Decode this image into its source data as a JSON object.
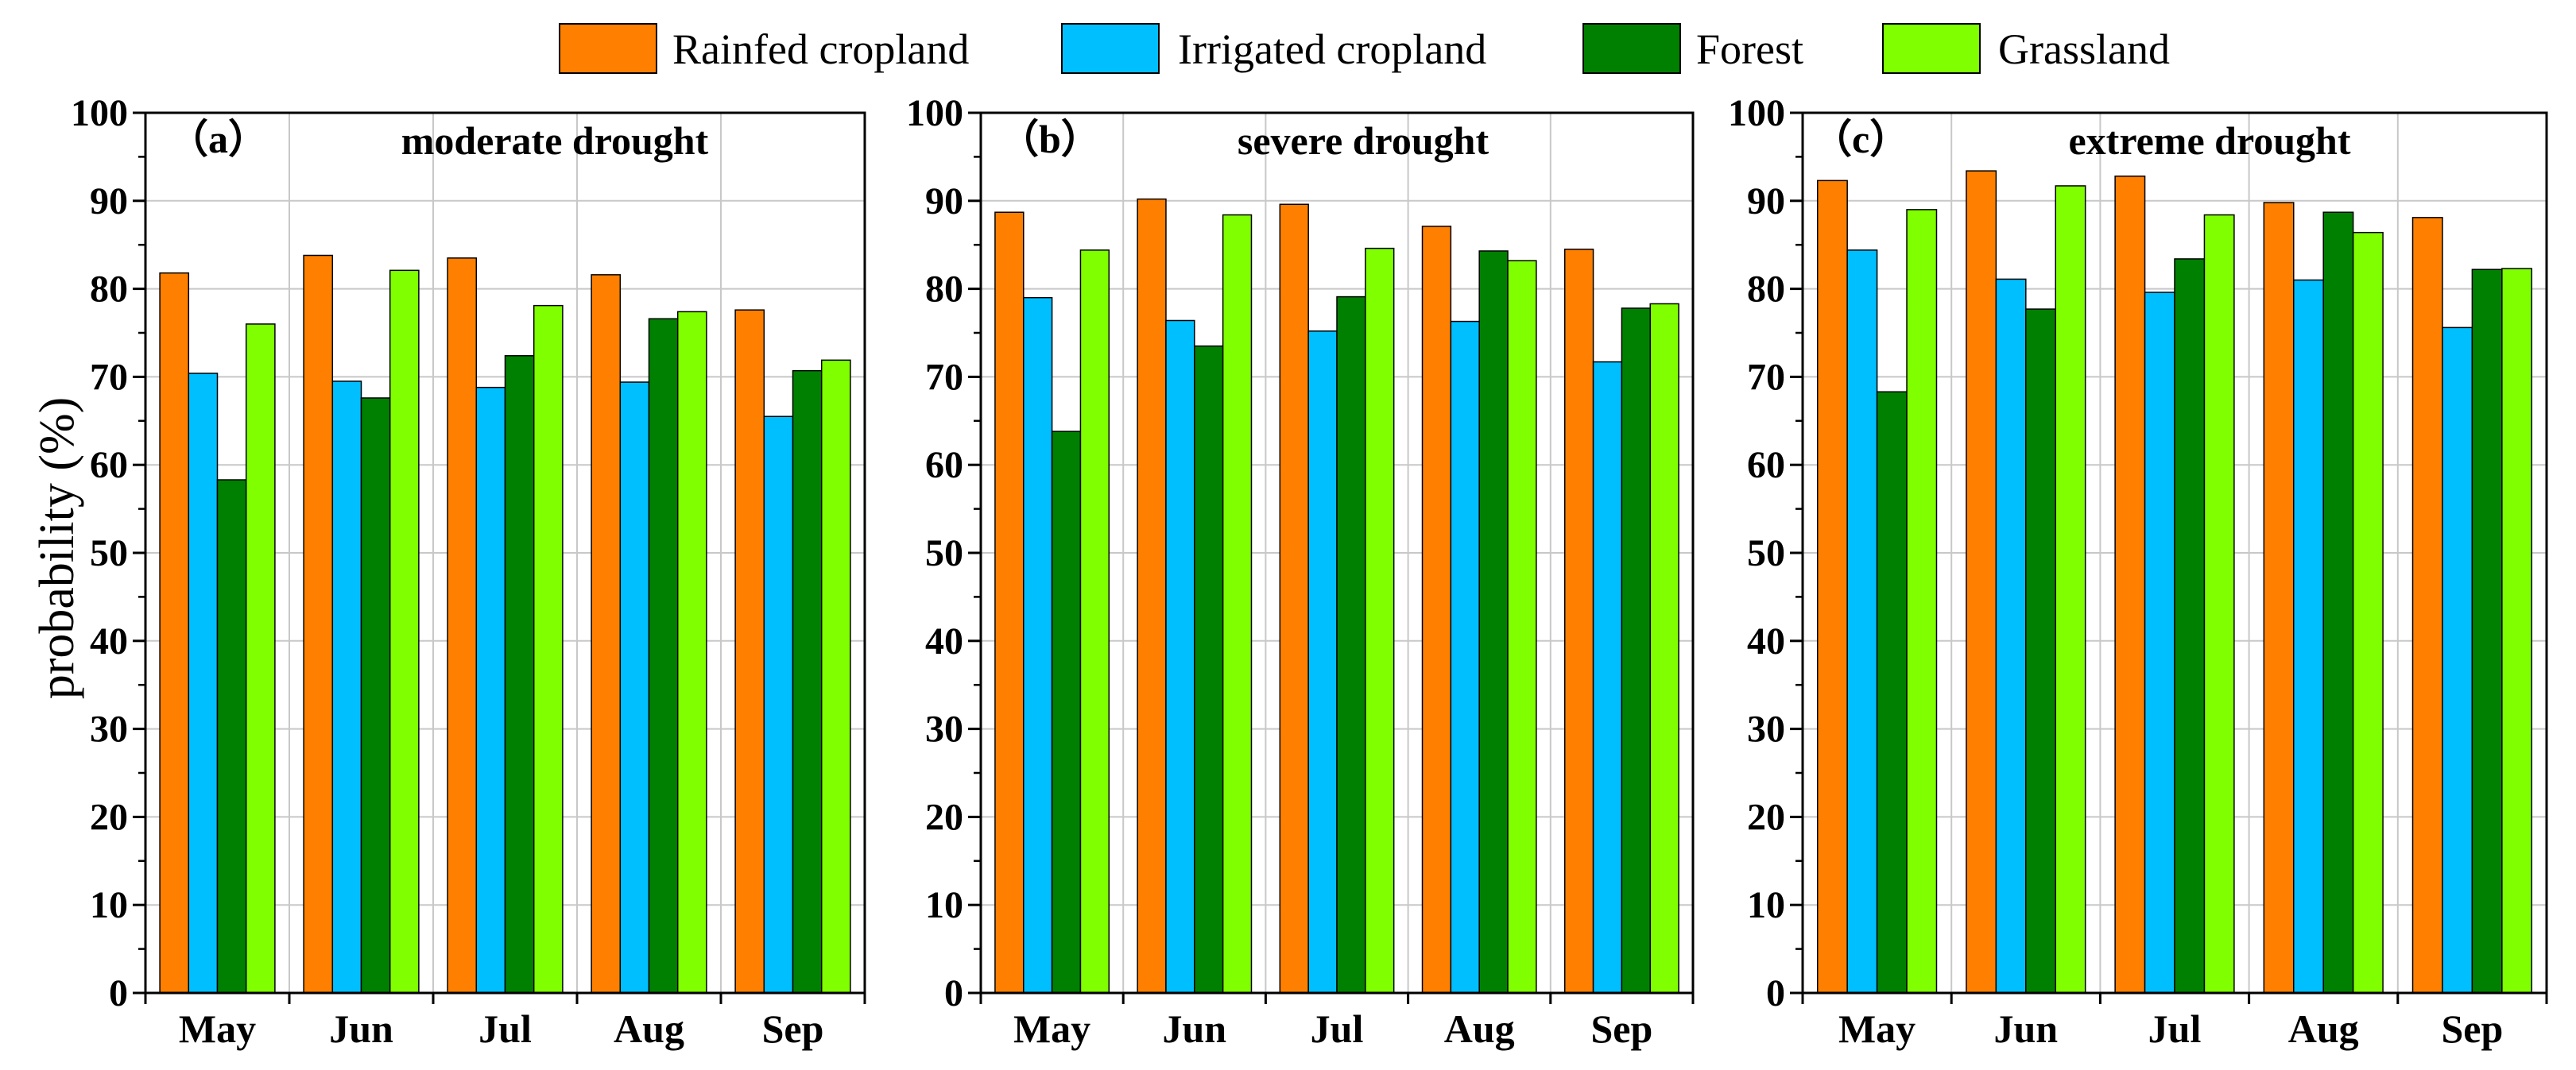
{
  "chart_data": {
    "type": "bar",
    "ylabel": "probability (%)",
    "ylim": [
      0,
      100
    ],
    "yticks": [
      0,
      10,
      20,
      30,
      40,
      50,
      60,
      70,
      80,
      90,
      100
    ],
    "grid": true,
    "legend_position": "top-center",
    "categories": [
      "May",
      "Jun",
      "Jul",
      "Aug",
      "Sep"
    ],
    "series_meta": [
      {
        "name": "Rainfed cropland",
        "color": "#FF7F00"
      },
      {
        "name": "Irrigated cropland",
        "color": "#00BFFF"
      },
      {
        "name": "Forest",
        "color": "#008000"
      },
      {
        "name": "Grassland",
        "color": "#7FFF00"
      }
    ],
    "panels": [
      {
        "letter": "（a）",
        "title": "moderate drought",
        "series": [
          {
            "name": "Rainfed cropland",
            "values": [
              81.8,
              83.8,
              83.5,
              81.6,
              77.6
            ]
          },
          {
            "name": "Irrigated cropland",
            "values": [
              70.4,
              69.5,
              68.8,
              69.4,
              65.5
            ]
          },
          {
            "name": "Forest",
            "values": [
              58.3,
              67.6,
              72.4,
              76.6,
              70.7
            ]
          },
          {
            "name": "Grassland",
            "values": [
              76.0,
              82.1,
              78.1,
              77.4,
              71.9
            ]
          }
        ]
      },
      {
        "letter": "（b）",
        "title": "severe drought",
        "series": [
          {
            "name": "Rainfed cropland",
            "values": [
              88.7,
              90.2,
              89.6,
              87.1,
              84.5
            ]
          },
          {
            "name": "Irrigated cropland",
            "values": [
              79.0,
              76.4,
              75.2,
              76.3,
              71.7
            ]
          },
          {
            "name": "Forest",
            "values": [
              63.8,
              73.5,
              79.1,
              84.3,
              77.8
            ]
          },
          {
            "name": "Grassland",
            "values": [
              84.4,
              88.4,
              84.6,
              83.2,
              78.3
            ]
          }
        ]
      },
      {
        "letter": "（c）",
        "title": "extreme drought",
        "series": [
          {
            "name": "Rainfed cropland",
            "values": [
              92.3,
              93.4,
              92.8,
              89.8,
              88.1
            ]
          },
          {
            "name": "Irrigated cropland",
            "values": [
              84.4,
              81.1,
              79.6,
              81.0,
              75.6
            ]
          },
          {
            "name": "Forest",
            "values": [
              68.3,
              77.7,
              83.4,
              88.7,
              82.2
            ]
          },
          {
            "name": "Grassland",
            "values": [
              89.0,
              91.7,
              88.4,
              86.4,
              82.3
            ]
          }
        ]
      }
    ]
  }
}
